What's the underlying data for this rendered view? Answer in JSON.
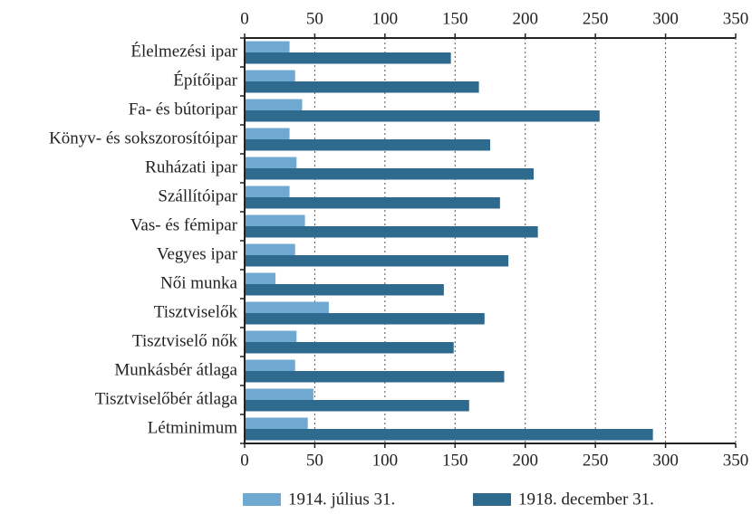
{
  "chart_data": {
    "type": "barh",
    "categories": [
      "Élelmezési ipar",
      "Építőipar",
      "Fa- és bútoripar",
      "Könyv- és sokszorosítóipar",
      "Ruházati ipar",
      "Szállítóipar",
      "Vas- és fémipar",
      "Vegyes ipar",
      "Női munka",
      "Tisztviselők",
      "Tisztviselő nők",
      "Munkásbér átlaga",
      "Tisztviselőbér átlaga",
      "Létminimum"
    ],
    "series": [
      {
        "name": "1914. július 31.",
        "color": "#6fa8d0",
        "values": [
          32,
          36,
          41,
          32,
          37,
          32,
          43,
          36,
          22,
          60,
          37,
          36,
          49,
          45
        ]
      },
      {
        "name": "1918. december 31.",
        "color": "#2e6a8e",
        "values": [
          147,
          167,
          253,
          175,
          206,
          182,
          209,
          188,
          142,
          171,
          149,
          185,
          160,
          291
        ]
      }
    ],
    "xlim": [
      0,
      350
    ],
    "xticks": [
      0,
      50,
      100,
      150,
      200,
      250,
      300,
      350
    ],
    "grid": true,
    "legend": "bottom"
  }
}
